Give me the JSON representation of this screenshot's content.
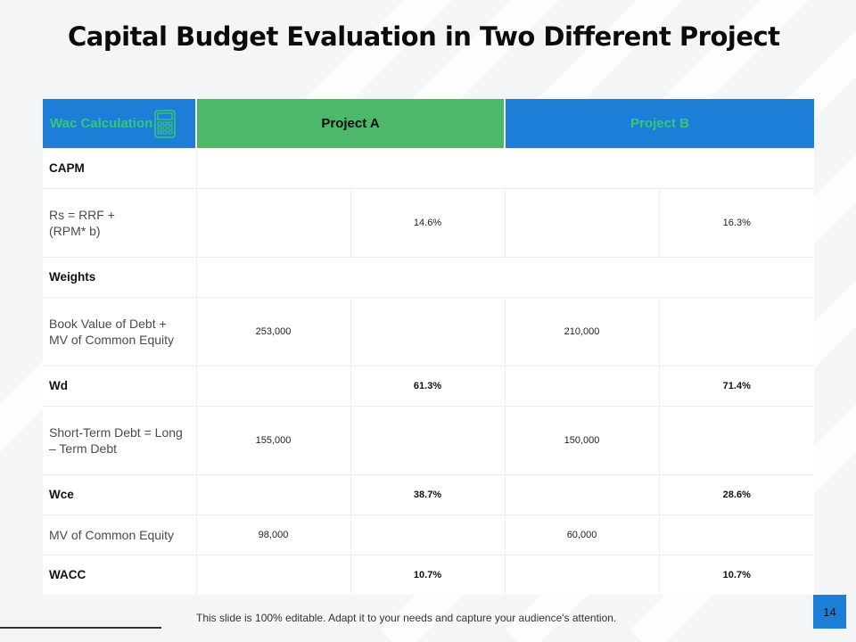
{
  "slide": {
    "title": "Capital Budget Evaluation in Two Different Project",
    "footer_note": "This slide is 100% editable. Adapt it to your needs and capture your audience's attention.",
    "page_number": "14"
  },
  "table": {
    "headers": {
      "label": "Wac Calculation",
      "project_a": "Project A",
      "project_b": "Project B",
      "icon": "calculator-icon"
    },
    "rows": {
      "capm": {
        "label": "CAPM"
      },
      "rs": {
        "label_line1": "Rs = RRF +",
        "label_line2": "(RPM* b)",
        "a_value": "14.6%",
        "b_value": "16.3%"
      },
      "weights": {
        "label": "Weights"
      },
      "book_value": {
        "label_line1": "Book Value of Debt +",
        "label_line2": "MV of Common Equity",
        "a_value": "253,000",
        "b_value": "210,000"
      },
      "wd": {
        "label": "Wd",
        "a_value": "61.3%",
        "b_value": "71.4%"
      },
      "short_term": {
        "label_line1": "Short-Term Debt = Long",
        "label_line2": "– Term Debt",
        "a_value": "155,000",
        "b_value": "150,000"
      },
      "wce": {
        "label": "Wce",
        "a_value": "38.7%",
        "b_value": "28.6%"
      },
      "mv_equity": {
        "label": "MV of Common Equity",
        "a_value": "98,000",
        "b_value": "60,000"
      },
      "wacc": {
        "label": "WACC",
        "a_value": "10.7%",
        "b_value": "10.7%"
      }
    }
  },
  "colors": {
    "blue_header": "#1d7ed8",
    "green_header": "#4bb86a",
    "header_text_accent": "#34c77b"
  }
}
